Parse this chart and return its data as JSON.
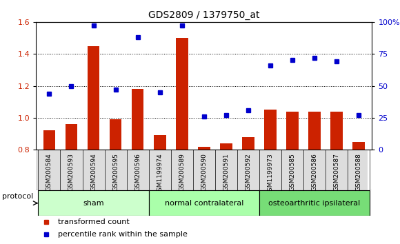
{
  "title": "GDS2809 / 1379750_at",
  "samples": [
    "GSM200584",
    "GSM200593",
    "GSM200594",
    "GSM200595",
    "GSM200596",
    "GSM1199974",
    "GSM200589",
    "GSM200590",
    "GSM200591",
    "GSM200592",
    "GSM1199973",
    "GSM200585",
    "GSM200586",
    "GSM200587",
    "GSM200588"
  ],
  "bar_values": [
    0.92,
    0.96,
    1.45,
    0.99,
    1.18,
    0.89,
    1.5,
    0.82,
    0.84,
    0.88,
    1.05,
    1.04,
    1.04,
    1.04,
    0.85
  ],
  "dot_values": [
    44,
    50,
    97,
    47,
    88,
    45,
    97,
    26,
    27,
    31,
    66,
    70,
    72,
    69,
    27
  ],
  "bar_color": "#cc2200",
  "dot_color": "#0000cc",
  "ylim_left": [
    0.8,
    1.6
  ],
  "ylim_right": [
    0,
    100
  ],
  "yticks_left": [
    0.8,
    1.0,
    1.2,
    1.4,
    1.6
  ],
  "yticks_right": [
    0,
    25,
    50,
    75,
    100
  ],
  "ytick_labels_right": [
    "0",
    "25",
    "50",
    "75",
    "100%"
  ],
  "groups": [
    {
      "label": "sham",
      "start": 0,
      "end": 5,
      "color": "#ccffcc"
    },
    {
      "label": "normal contralateral",
      "start": 5,
      "end": 10,
      "color": "#aaffaa"
    },
    {
      "label": "osteoarthritic ipsilateral",
      "start": 10,
      "end": 15,
      "color": "#77dd77"
    }
  ],
  "legend_bar_label": "transformed count",
  "legend_dot_label": "percentile rank within the sample",
  "protocol_label": "protocol",
  "background_color": "#ffffff",
  "plot_bg_color": "#ffffff",
  "xlabel_bg_color": "#dddddd"
}
